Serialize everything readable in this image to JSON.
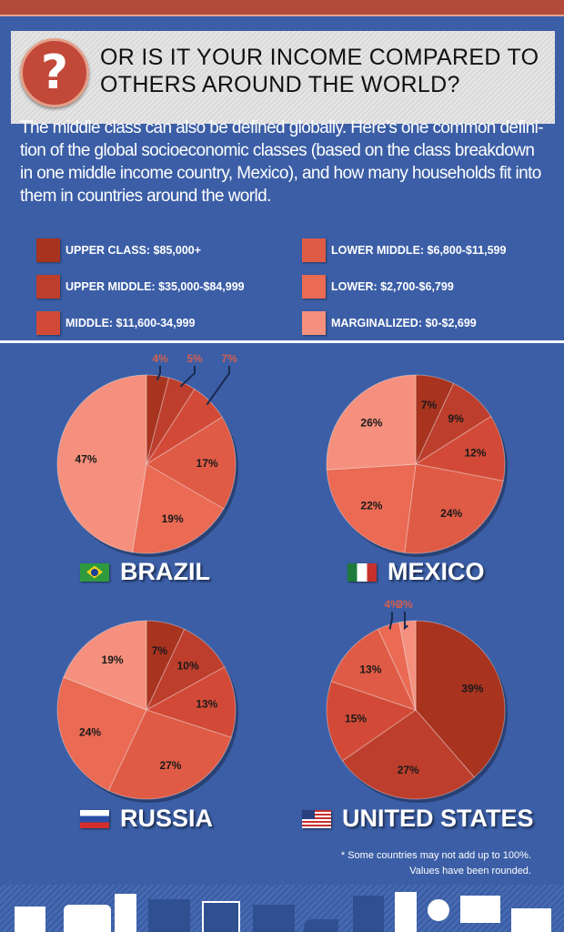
{
  "header": {
    "icon": "question-mark-icon",
    "icon_glyph": "?",
    "title_line1": "OR IS IT YOUR INCOME COMPARED TO",
    "title_line2": "OTHERS AROUND THE WORLD?"
  },
  "intro": "The middle class can also be defined globally. Here’s one common defini-tion of the global socioeconomic classes (based on the class breakdown in one middle income country, Mexico), and how many households fit into them in countries around the world.",
  "legend": [
    {
      "label": "UPPER CLASS: $85,000+",
      "color": "#a8331f"
    },
    {
      "label": "UPPER MIDDLE: $35,000-$84,999",
      "color": "#bd3e2c"
    },
    {
      "label": "MIDDLE: $11,600-34,999",
      "color": "#d24a37"
    },
    {
      "label": "LOWER MIDDLE: $6,800-$11,599",
      "color": "#df5b45"
    },
    {
      "label": "LOWER: $2,700-$6,799",
      "color": "#ea6a54"
    },
    {
      "label": "MARGINALIZED: $0-$2,699",
      "color": "#f4907d"
    }
  ],
  "chart_data": [
    {
      "type": "pie",
      "title": "BRAZIL",
      "categories": [
        "Upper class",
        "Upper middle",
        "Middle",
        "Lower middle",
        "Lower",
        "Marginalized"
      ],
      "values": [
        4,
        5,
        7,
        17,
        19,
        47
      ],
      "labels": [
        "4%",
        "5%",
        "7%",
        "17%",
        "19%",
        "47%"
      ]
    },
    {
      "type": "pie",
      "title": "MEXICO",
      "categories": [
        "Upper class",
        "Upper middle",
        "Middle",
        "Lower middle",
        "Lower",
        "Marginalized"
      ],
      "values": [
        7,
        9,
        12,
        24,
        22,
        26
      ],
      "labels": [
        "7%",
        "9%",
        "12%",
        "24%",
        "22%",
        "26%"
      ]
    },
    {
      "type": "pie",
      "title": "RUSSIA",
      "categories": [
        "Upper class",
        "Upper middle",
        "Middle",
        "Lower middle",
        "Lower",
        "Marginalized"
      ],
      "values": [
        7,
        10,
        13,
        27,
        24,
        19
      ],
      "labels": [
        "7%",
        "10%",
        "13%",
        "27%",
        "24%",
        "19%"
      ]
    },
    {
      "type": "pie",
      "title": "UNITED STATES",
      "categories": [
        "Upper class",
        "Upper middle",
        "Middle",
        "Lower middle",
        "Lower",
        "Marginalized"
      ],
      "values": [
        39,
        27,
        15,
        13,
        4,
        3
      ],
      "labels": [
        "39%",
        "27%",
        "15%",
        "13%",
        "4%",
        "3%"
      ]
    }
  ],
  "countries": [
    "BRAZIL",
    "MEXICO",
    "RUSSIA",
    "UNITED STATES"
  ],
  "footnote_line1": "* Some countries may not add up to 100%.",
  "footnote_line2": "Values have been rounded."
}
